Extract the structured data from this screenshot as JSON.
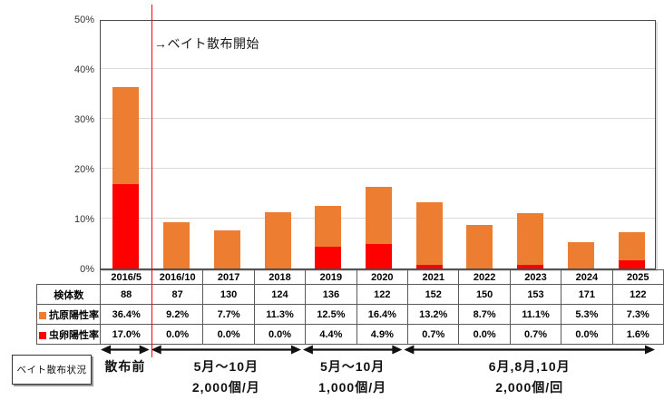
{
  "chart": {
    "annotation": "→ベイト散布開始",
    "y_axis_unit": "%"
  },
  "chart_data": {
    "type": "bar",
    "title": "",
    "xlabel": "",
    "ylabel": "",
    "categories": [
      "2016/5",
      "2016/10",
      "2017",
      "2018",
      "2019",
      "2020",
      "2021",
      "2022",
      "2023",
      "2024",
      "2025"
    ],
    "series": [
      {
        "name": "抗原陽性率",
        "color": "#ED7D31",
        "values": [
          36.4,
          9.2,
          7.7,
          11.3,
          12.5,
          16.4,
          13.2,
          8.7,
          11.1,
          5.3,
          7.3
        ]
      },
      {
        "name": "虫卵陽性率",
        "color": "#FF0000",
        "values": [
          17.0,
          0.0,
          0.0,
          0.0,
          4.4,
          4.9,
          0.7,
          0.0,
          0.7,
          0.0,
          1.6
        ]
      }
    ],
    "sample_counts": [
      88,
      87,
      130,
      124,
      136,
      122,
      152,
      150,
      153,
      171,
      122
    ],
    "series_note": "red egg-positivity segment is drawn at the base of the orange bar; orange bar top equals antigen positivity rate",
    "ylim": [
      0,
      50
    ],
    "y_tick_step": 10,
    "y_tick_format": "percent",
    "grid": true,
    "legend_position": "table-left",
    "event_line": {
      "label": "→ベイト散布開始",
      "after_category": "2016/5",
      "color": "#FF0000"
    }
  },
  "table": {
    "columns": [
      "2016/5",
      "2016/10",
      "2017",
      "2018",
      "2019",
      "2020",
      "2021",
      "2022",
      "2023",
      "2024",
      "2025"
    ],
    "rows": [
      {
        "label": "検体数",
        "swatch": null,
        "values": [
          "88",
          "87",
          "130",
          "124",
          "136",
          "122",
          "152",
          "150",
          "153",
          "171",
          "122"
        ]
      },
      {
        "label": "抗原陽性率",
        "swatch": "#ED7D31",
        "values": [
          "36.4%",
          "9.2%",
          "7.7%",
          "11.3%",
          "12.5%",
          "16.4%",
          "13.2%",
          "8.7%",
          "11.1%",
          "5.3%",
          "7.3%"
        ]
      },
      {
        "label": "虫卵陽性率",
        "swatch": "#FF0000",
        "values": [
          "17.0%",
          "0.0%",
          "0.0%",
          "0.0%",
          "4.4%",
          "4.9%",
          "0.7%",
          "0.0%",
          "0.7%",
          "0.0%",
          "1.6%"
        ]
      }
    ]
  },
  "timeline": {
    "box_label": "ベイト散布状況",
    "segments": [
      {
        "label": "散布前",
        "sub": "",
        "col_start": 0,
        "col_end": 0
      },
      {
        "label": "5月～10月",
        "sub": "2,000個/月",
        "col_start": 1,
        "col_end": 3
      },
      {
        "label": "5月～10月",
        "sub": "1,000個/月",
        "col_start": 4,
        "col_end": 5
      },
      {
        "label": "6月,8月,10月",
        "sub": "2,000個/回",
        "col_start": 6,
        "col_end": 10
      }
    ]
  },
  "colors": {
    "antigen": "#ED7D31",
    "egg": "#FF0000",
    "event_line": "#FF0000",
    "gridline": "#D9D9D9",
    "plot_border": "#4A4A4A",
    "table_border": "#5A5A5A",
    "arrow": "#111111"
  }
}
